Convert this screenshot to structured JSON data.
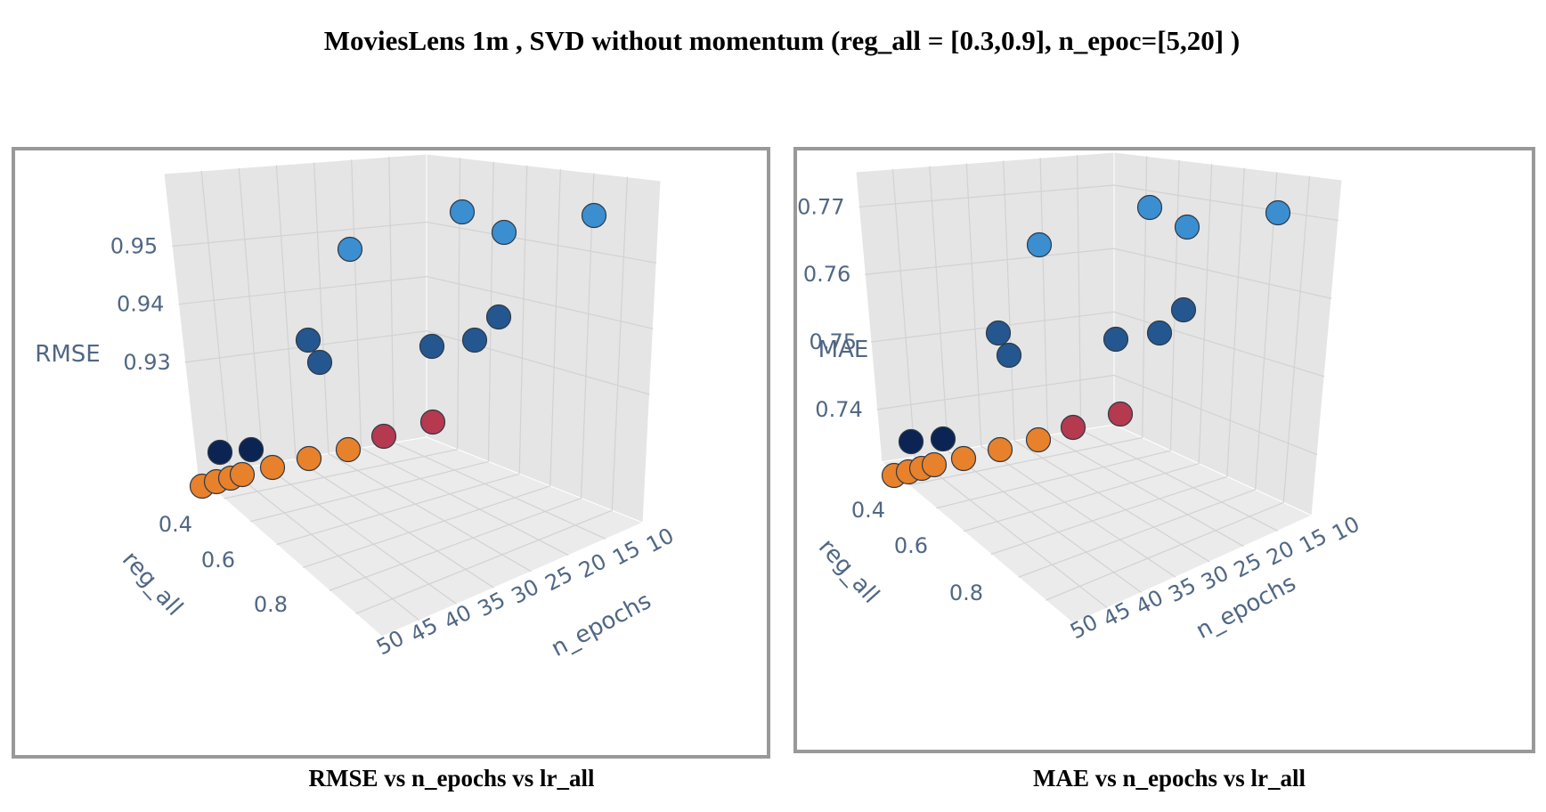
{
  "title": "MoviesLens 1m , SVD without momentum  (reg_all = [0.3,0.9], n_epoc=[5,20] )",
  "chart_data": [
    {
      "type": "scatter3d",
      "caption": "RMSE vs n_epochs vs lr_all",
      "zlabel": "RMSE",
      "ylabel": "reg_all",
      "xlabel": "n_epochs",
      "z_ticks": [
        "0.93",
        "0.94",
        "0.95"
      ],
      "y_ticks": [
        "0.4",
        "0.6",
        "0.8"
      ],
      "x_ticks": [
        "10",
        "15",
        "20",
        "25",
        "30",
        "35",
        "40",
        "45",
        "50"
      ],
      "grid": true,
      "colors": {
        "light_blue": "#3b8fd0",
        "mid_blue": "#24578f",
        "navy": "#0b2454",
        "orange": "#e8812c",
        "red": "#b53a4f"
      },
      "points": [
        {
          "z": 0.9495,
          "color": "light_blue"
        },
        {
          "z": 0.9535,
          "color": "light_blue"
        },
        {
          "z": 0.9505,
          "color": "light_blue"
        },
        {
          "z": 0.9505,
          "color": "light_blue"
        },
        {
          "z": 0.9385,
          "color": "mid_blue"
        },
        {
          "z": 0.9365,
          "color": "mid_blue"
        },
        {
          "z": 0.938,
          "color": "mid_blue"
        },
        {
          "z": 0.9385,
          "color": "mid_blue"
        },
        {
          "z": 0.94,
          "color": "mid_blue"
        },
        {
          "z": 0.9255,
          "color": "navy"
        },
        {
          "z": 0.926,
          "color": "navy"
        },
        {
          "z": 0.928,
          "color": "red"
        },
        {
          "z": 0.929,
          "color": "red"
        },
        {
          "z": 0.923,
          "color": "orange"
        },
        {
          "z": 0.923,
          "color": "orange"
        },
        {
          "z": 0.9232,
          "color": "orange"
        },
        {
          "z": 0.9235,
          "color": "orange"
        },
        {
          "z": 0.924,
          "color": "orange"
        },
        {
          "z": 0.925,
          "color": "orange"
        },
        {
          "z": 0.9255,
          "color": "orange"
        }
      ]
    },
    {
      "type": "scatter3d",
      "caption": "MAE vs n_epochs vs lr_all",
      "zlabel": "MAE",
      "ylabel": "reg_all",
      "xlabel": "n_epochs",
      "z_ticks": [
        "0.74",
        "0.75",
        "0.76",
        "0.77"
      ],
      "y_ticks": [
        "0.4",
        "0.6",
        "0.8"
      ],
      "x_ticks": [
        "10",
        "15",
        "20",
        "25",
        "30",
        "35",
        "40",
        "45",
        "50"
      ],
      "grid": true,
      "colors": {
        "light_blue": "#3b8fd0",
        "mid_blue": "#24578f",
        "navy": "#0b2454",
        "orange": "#e8812c",
        "red": "#b53a4f"
      },
      "points": [
        {
          "z": 0.7665,
          "color": "light_blue"
        },
        {
          "z": 0.77,
          "color": "light_blue"
        },
        {
          "z": 0.7675,
          "color": "light_blue"
        },
        {
          "z": 0.7695,
          "color": "light_blue"
        },
        {
          "z": 0.7545,
          "color": "mid_blue"
        },
        {
          "z": 0.752,
          "color": "mid_blue"
        },
        {
          "z": 0.7535,
          "color": "mid_blue"
        },
        {
          "z": 0.7545,
          "color": "mid_blue"
        },
        {
          "z": 0.757,
          "color": "mid_blue"
        },
        {
          "z": 0.7405,
          "color": "navy"
        },
        {
          "z": 0.741,
          "color": "navy"
        },
        {
          "z": 0.7435,
          "color": "red"
        },
        {
          "z": 0.7445,
          "color": "red"
        },
        {
          "z": 0.7365,
          "color": "orange"
        },
        {
          "z": 0.7368,
          "color": "orange"
        },
        {
          "z": 0.7372,
          "color": "orange"
        },
        {
          "z": 0.7376,
          "color": "orange"
        },
        {
          "z": 0.7385,
          "color": "orange"
        },
        {
          "z": 0.74,
          "color": "orange"
        },
        {
          "z": 0.741,
          "color": "orange"
        }
      ]
    }
  ]
}
